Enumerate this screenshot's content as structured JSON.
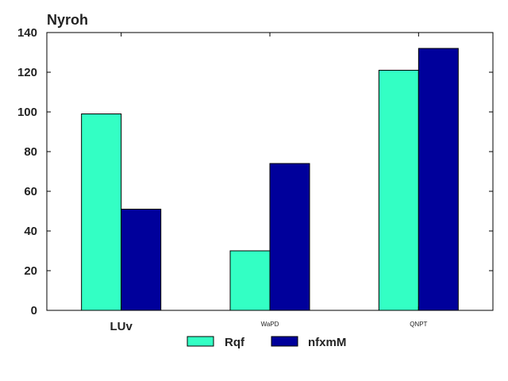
{
  "chart_data": {
    "type": "bar",
    "title": "Nyroh",
    "xlabel": "",
    "ylabel": "",
    "categories": [
      "LUv",
      "WaPD",
      "QNPT"
    ],
    "category_label_sizes": [
      "large",
      "small",
      "small"
    ],
    "series": [
      {
        "name": "Rqf",
        "values": [
          99,
          30,
          121
        ],
        "color": "#33ffc4"
      },
      {
        "name": "nfxmM",
        "values": [
          51,
          74,
          132
        ],
        "color": "#00009b"
      }
    ],
    "ylim": [
      0,
      140
    ],
    "yticks": [
      0,
      20,
      40,
      60,
      80,
      100,
      120,
      140
    ],
    "grid": false,
    "legend_position": "bottom-center"
  }
}
